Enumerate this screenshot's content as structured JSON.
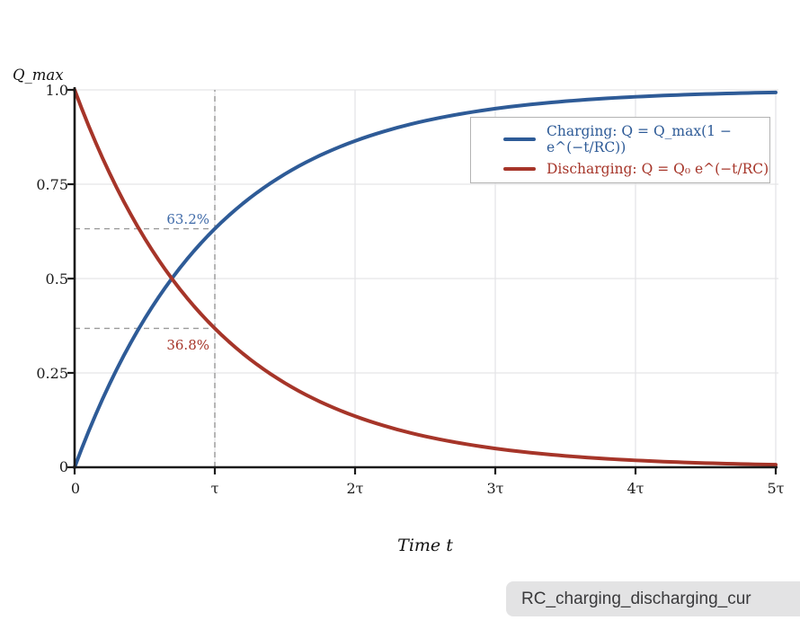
{
  "tooltip": {
    "filename": "RC_charging_discharging_cur"
  },
  "chart_data": {
    "type": "line",
    "title": "",
    "x_axis_label": "Time t",
    "y_axis_label": "Q_max",
    "x_tick_labels": [
      "0",
      "τ",
      "2τ",
      "3τ",
      "4τ",
      "5τ"
    ],
    "x_tick_values_tau": [
      0,
      1,
      2,
      3,
      4,
      5
    ],
    "y_tick_labels": [
      "0",
      "0.25",
      "0.5",
      "0.75",
      "1.0"
    ],
    "y_tick_values": [
      0,
      0.25,
      0.5,
      0.75,
      1.0
    ],
    "x_range_tau": [
      0,
      5
    ],
    "y_range": [
      0,
      1
    ],
    "grid": true,
    "legend_position": "upper right",
    "colors": {
      "charging": "#2e5b97",
      "discharging": "#a63529",
      "grid": "#e5e5e7",
      "axis": "#1a1a1a",
      "guide_dash": "#9a9a9a",
      "annotation_blue": "#3f6aa8",
      "annotation_red": "#a63529"
    },
    "series": [
      {
        "name": "charging",
        "label": "Charging: Q = Q_max(1 − e^(−t/RC))",
        "color": "#2e5b97",
        "formula": "Q = Q_max(1 − e^(−t/RC))",
        "points_t_tau": [
          0,
          0.5,
          1,
          1.5,
          2,
          2.5,
          3,
          3.5,
          4,
          4.5,
          5
        ],
        "points_q": [
          0,
          0.393,
          0.632,
          0.777,
          0.865,
          0.918,
          0.95,
          0.97,
          0.982,
          0.989,
          0.993
        ]
      },
      {
        "name": "discharging",
        "label": "Discharging: Q = Q₀ e^(−t/RC)",
        "color": "#a63529",
        "formula": "Q = Q₀ e^(−t/RC)",
        "points_t_tau": [
          0,
          0.5,
          1,
          1.5,
          2,
          2.5,
          3,
          3.5,
          4,
          4.5,
          5
        ],
        "points_q": [
          1,
          0.607,
          0.368,
          0.223,
          0.135,
          0.082,
          0.05,
          0.03,
          0.018,
          0.011,
          0.007
        ]
      }
    ],
    "annotations": [
      {
        "text": "63.2%",
        "t_tau": 1,
        "q": 0.632,
        "color": "#3f6aa8"
      },
      {
        "text": "36.8%",
        "t_tau": 1,
        "q": 0.368,
        "color": "#a63529"
      }
    ],
    "guides": {
      "vertical_at_tau": 1,
      "horizontal_at_q": [
        0.632,
        0.368
      ]
    }
  }
}
